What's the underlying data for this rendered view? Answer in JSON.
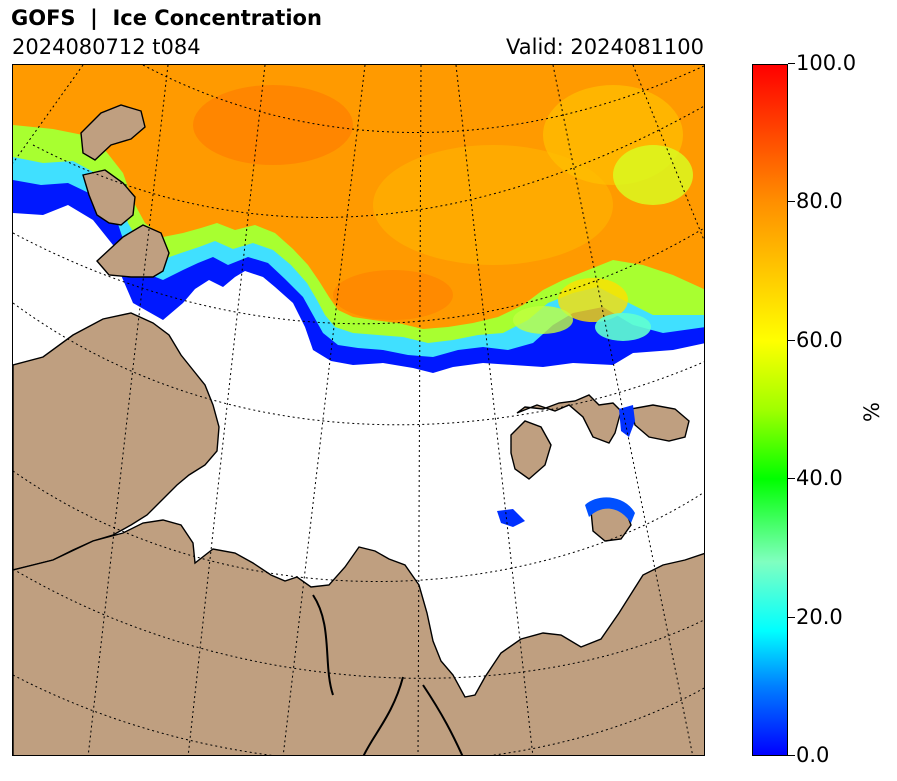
{
  "title": "GOFS  |  Ice Concentration",
  "run_label": "2024080712 t084",
  "valid_label": "Valid: 2024081100",
  "colorbar": {
    "label": "%",
    "min": 0,
    "max": 100,
    "ticks": [
      "0.0",
      "20.0",
      "40.0",
      "60.0",
      "80.0",
      "100.0"
    ],
    "tick_values": [
      0,
      20,
      40,
      60,
      80,
      100
    ],
    "colors": [
      "#0000ff",
      "#00ffff",
      "#80ff80",
      "#00ff00",
      "#ffff00",
      "#ff8000",
      "#ff0000"
    ]
  },
  "map": {
    "land_color": "#bf9f80",
    "ocean_color": "#ffffff",
    "gridline_style": "dotted",
    "legend_placement": "right"
  }
}
